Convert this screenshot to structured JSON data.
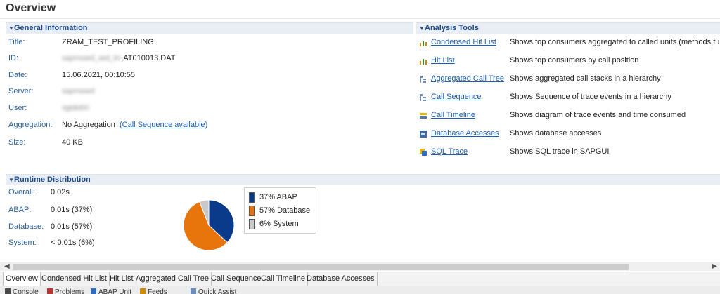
{
  "page": {
    "title": "Overview"
  },
  "general": {
    "header": "General Information",
    "fields": [
      {
        "label": "Title:",
        "value": "ZRAM_TEST_PROFILING"
      },
      {
        "label": "ID:",
        "value_blur": "sapmssed_sed_lm",
        "value": ",AT010013.DAT"
      },
      {
        "label": "Date:",
        "value": "15.06.2021, 00:10:55"
      },
      {
        "label": "Server:",
        "value_blur": "sapmssed"
      },
      {
        "label": "User:",
        "value_blur": "rigtdtd00"
      },
      {
        "label": "Aggregation:",
        "value": "No Aggregation",
        "link": "(Call Sequence available)"
      },
      {
        "label": "Size:",
        "value": "40 KB"
      }
    ]
  },
  "analysis": {
    "header": "Analysis Tools",
    "tools": [
      {
        "link": "Condensed Hit List",
        "desc": "Shows top consumers aggregated to called units (methods,fu",
        "icon": "bar-chart-icon"
      },
      {
        "link": "Hit List",
        "desc": "Shows top consumers by call position",
        "icon": "bar-chart-icon"
      },
      {
        "link": "Aggregated Call Tree",
        "desc": "Shows aggregated call stacks in a hierarchy",
        "icon": "tree-icon"
      },
      {
        "link": "Call Sequence",
        "desc": "Shows Sequence of trace events in a hierarchy",
        "icon": "tree-icon"
      },
      {
        "link": "Call Timeline",
        "desc": "Shows diagram of trace events and time consumed",
        "icon": "timeline-icon"
      },
      {
        "link": "Database Accesses",
        "desc": "Shows database accesses",
        "icon": "database-icon"
      },
      {
        "link": "SQL Trace",
        "desc": "Shows SQL trace in SAPGUI",
        "icon": "sql-trace-icon"
      }
    ]
  },
  "runtime": {
    "header": "Runtime Distribution",
    "rows": [
      {
        "label": "Overall:",
        "value": "0.02s"
      },
      {
        "label": "ABAP:",
        "value": "0.01s (37%)"
      },
      {
        "label": "Database:",
        "value": "0.01s (57%)"
      },
      {
        "label": "System:",
        "value": "< 0,01s (6%)"
      }
    ]
  },
  "chart_data": {
    "type": "pie",
    "categories": [
      "ABAP",
      "Database",
      "System"
    ],
    "values": [
      37,
      57,
      6
    ],
    "legend": [
      "37% ABAP",
      "57% Database",
      "6% System"
    ],
    "colors": [
      "#0a3a8a",
      "#e8740c",
      "#c9c9c9"
    ],
    "legend_position": "right"
  },
  "tabs": [
    {
      "label": "Overview",
      "active": true
    },
    {
      "label": "Condensed Hit List"
    },
    {
      "label": "Hit List"
    },
    {
      "label": "Aggregated Call Tree"
    },
    {
      "label": "Call Sequence"
    },
    {
      "label": "Call Timeline"
    },
    {
      "label": "Database Accesses"
    }
  ],
  "bottom": {
    "items": [
      "Console",
      "Problems",
      "ABAP Unit",
      "Feeds",
      "Quick Assist"
    ]
  }
}
